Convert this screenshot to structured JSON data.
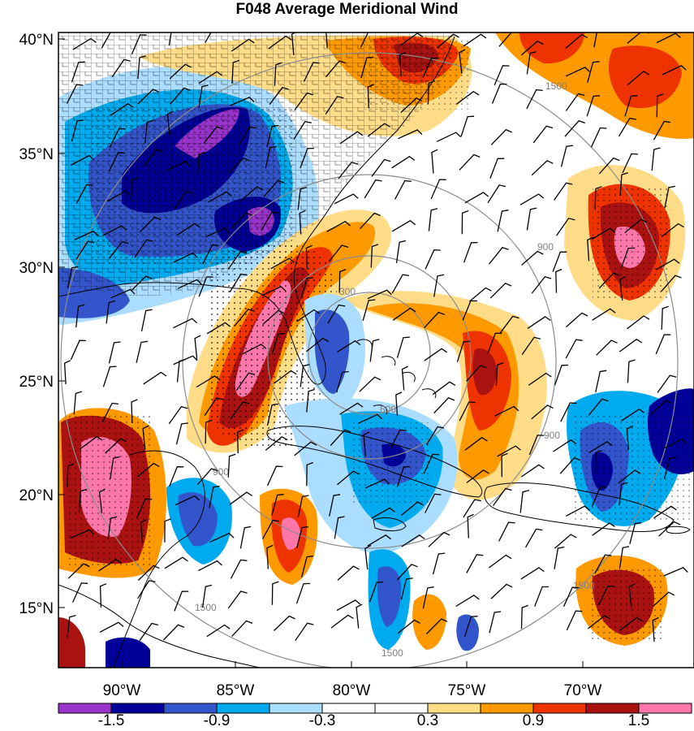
{
  "title": "F048 Average Meridional Wind",
  "map": {
    "lat_labels": [
      "40°N",
      "35°N",
      "30°N",
      "25°N",
      "20°N",
      "15°N"
    ],
    "lon_labels": [
      "90°W",
      "85°W",
      "80°W",
      "75°W",
      "70°W"
    ],
    "lat_range": [
      12.5,
      40.5
    ],
    "lon_range": [
      -92.2,
      -64.5
    ],
    "contour_labels": [
      "300",
      "600",
      "900",
      "900",
      "900",
      "1500",
      "1500",
      "1500",
      "1500"
    ],
    "colorbar": {
      "colors": [
        "#9933cc",
        "#000099",
        "#3355cc",
        "#00aaee",
        "#aaddff",
        "#ffffff",
        "#ffffff",
        "#ffdd88",
        "#ff9900",
        "#ee3300",
        "#aa1111",
        "#ff77aa"
      ],
      "labels": [
        "-1.5",
        "-0.9",
        "-0.3",
        "0.3",
        "0.9",
        "1.5"
      ]
    }
  }
}
